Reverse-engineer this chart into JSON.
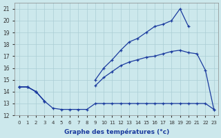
{
  "title": "Graphe des températures (°c)",
  "background_color": "#cce8ec",
  "grid_color": "#aacdd4",
  "line_color": "#1a3a9e",
  "hours": [
    0,
    1,
    2,
    3,
    4,
    5,
    6,
    7,
    8,
    9,
    10,
    11,
    12,
    13,
    14,
    15,
    16,
    17,
    18,
    19,
    20,
    21,
    22,
    23
  ],
  "curve_top": [
    14.4,
    14.4,
    14.0,
    13.2,
    null,
    null,
    null,
    null,
    null,
    15.0,
    16.0,
    16.7,
    17.5,
    18.2,
    18.5,
    19.0,
    19.5,
    19.7,
    20.0,
    21.0,
    19.5,
    null,
    null,
    null
  ],
  "curve_mid": [
    14.4,
    14.4,
    14.0,
    13.2,
    null,
    null,
    null,
    null,
    null,
    14.5,
    15.2,
    15.7,
    16.2,
    16.5,
    16.7,
    16.9,
    17.0,
    17.2,
    17.4,
    17.5,
    17.3,
    17.2,
    15.8,
    12.5
  ],
  "curve_bot": [
    14.4,
    14.4,
    14.0,
    13.2,
    12.6,
    12.5,
    12.5,
    12.5,
    12.5,
    13.0,
    13.0,
    13.0,
    13.0,
    13.0,
    13.0,
    13.0,
    13.0,
    13.0,
    13.0,
    13.0,
    13.0,
    13.0,
    13.0,
    12.5
  ],
  "ylim": [
    12,
    21.5
  ],
  "yticks": [
    12,
    13,
    14,
    15,
    16,
    17,
    18,
    19,
    20,
    21
  ],
  "xlim": [
    -0.5,
    23.5
  ]
}
